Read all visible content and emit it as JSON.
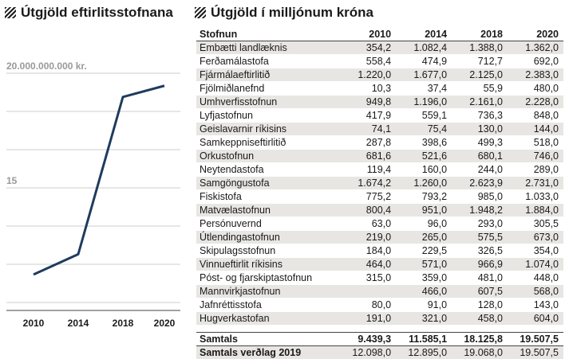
{
  "left_title": "Útgjöld eftirlitsstofnana",
  "right_title": "Útgjöld í milljónum króna",
  "colors": {
    "line": "#1f3b5e",
    "grid": "#bbbbbb",
    "label": "#999999",
    "stripe": "#e8e6e3"
  },
  "chart_data": [
    {
      "type": "line",
      "title": "Útgjöld eftirlitsstofnana",
      "x": [
        "2010",
        "2014",
        "2018",
        "2020"
      ],
      "series": [
        {
          "values": [
            12098000000,
            12895000000,
            19068000000,
            19507500000
          ]
        }
      ],
      "y_label_top": "20.000.000.000 kr.",
      "y_label_mid": "15",
      "ylim": [
        11000000000,
        21500000000
      ],
      "yticks": [
        11000000000,
        12500000000,
        14000000000,
        15500000000,
        17000000000,
        18500000000,
        20000000000
      ],
      "grid": true
    },
    {
      "type": "table",
      "title": "Útgjöld í milljónum króna",
      "columns": [
        "Stofnun",
        "2010",
        "2014",
        "2018",
        "2020"
      ],
      "rows": [
        [
          "Embætti landlæknis",
          "354,2",
          "1.082,4",
          "1.388,0",
          "1.362,0"
        ],
        [
          "Ferðamálastofa",
          "558,4",
          "474,9",
          "712,7",
          "692,0"
        ],
        [
          "Fjármálaeftirlitið",
          "1.220,0",
          "1.677,0",
          "2.125,0",
          "2.383,0"
        ],
        [
          "Fjölmiðlanefnd",
          "10,3",
          "37,4",
          "55,9",
          "480,0"
        ],
        [
          "Umhverfisstofnun",
          "949,8",
          "1.196,0",
          "2.161,0",
          "2.228,0"
        ],
        [
          "Lyfjastofnun",
          "417,9",
          "559,1",
          "736,3",
          "848,0"
        ],
        [
          "Geislavarnir ríkisins",
          "74,1",
          "75,4",
          "130,0",
          "144,0"
        ],
        [
          "Samkeppniseftirlitið",
          "287,8",
          "398,6",
          "499,3",
          "518,0"
        ],
        [
          "Orkustofnun",
          "681,6",
          "521,6",
          "680,1",
          "746,0"
        ],
        [
          "Neytendastofa",
          "119,4",
          "160,0",
          "244,0",
          "289,0"
        ],
        [
          "Samgöngustofa",
          "1.674,2",
          "1.260,0",
          "2.623,9",
          "2.731,0"
        ],
        [
          "Fiskistofa",
          "775,2",
          "793,2",
          "985,0",
          "1.033,0"
        ],
        [
          "Matvælastofnun",
          "800,4",
          "951,0",
          "1.948,2",
          "1.884,0"
        ],
        [
          "Persónuvernd",
          "63,0",
          "96,0",
          "293,0",
          "305,5"
        ],
        [
          "Útlendingastofnun",
          "219,0",
          "265,0",
          "575,5",
          "673,0"
        ],
        [
          "Skipulagsstofnun",
          "184,0",
          "229,5",
          "326,5",
          "354,0"
        ],
        [
          "Vinnueftirlit ríkisins",
          "464,0",
          "571,0",
          "966,9",
          "1.074,0"
        ],
        [
          "Póst- og fjarskiptastofnun",
          "315,0",
          "359,0",
          "481,0",
          "448,0"
        ],
        [
          "Mannvirkjastofnun",
          "",
          "466,0",
          "607,5",
          "568,0"
        ],
        [
          "Jafnréttisstofa",
          "80,0",
          "91,0",
          "128,0",
          "143,0"
        ],
        [
          "Hugverkastofan",
          "191,0",
          "321,0",
          "458,0",
          "604,0"
        ]
      ],
      "totals": [
        [
          "Samtals",
          "9.439,3",
          "11.585,1",
          "18.125,8",
          "19.507,5"
        ],
        [
          "Samtals verðlag 2019",
          "12.098,0",
          "12.895,0",
          "19.068,0",
          "19.507,5"
        ]
      ]
    }
  ]
}
